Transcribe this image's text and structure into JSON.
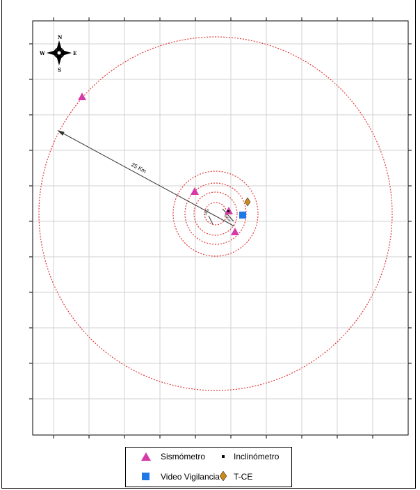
{
  "compass": {
    "north": "N",
    "south": "S",
    "east": "E",
    "west": "W"
  },
  "annotations": {
    "distance_label": "25 Km",
    "small_label_1": "1Km",
    "small_label_2": "5 Km"
  },
  "legend": {
    "seismometer": "Sismómetro",
    "inclinometer": "Inclinómetro",
    "video": "Video Vigilancia",
    "tce": "T-CE"
  },
  "colors": {
    "seismometer": "#d63aa8",
    "video": "#1f78e8",
    "tce": "#c98a1a",
    "inclinometer": "#000000",
    "rings": "#e23a3a"
  }
}
